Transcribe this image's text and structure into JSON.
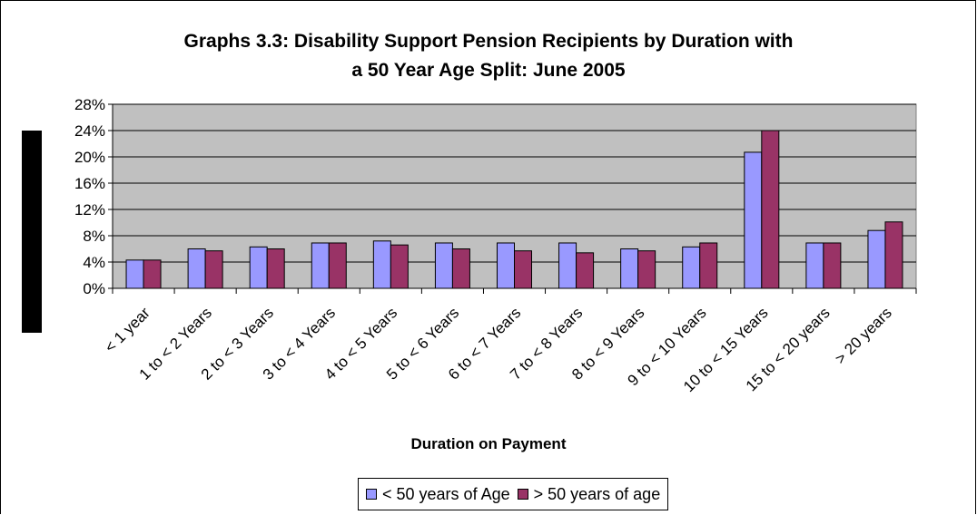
{
  "chart_data": {
    "type": "bar",
    "title_lines": [
      "Graphs 3.3: Disability Support Pension Recipients by Duration with",
      "a 50 Year Age Split:  June 2005"
    ],
    "xlabel": "Duration on Payment",
    "ylabel": "",
    "ylim": [
      0,
      28
    ],
    "yticks": [
      "0%",
      "4%",
      "8%",
      "12%",
      "16%",
      "20%",
      "24%",
      "28%"
    ],
    "grid": true,
    "legend_position": "bottom",
    "categories": [
      "< 1 year",
      "1 to < 2 Years",
      "2 to < 3 Years",
      "3 to < 4 Years",
      "4 to < 5 Years",
      "5 to < 6 Years",
      "6 to < 7 Years",
      "7 to < 8 Years",
      "8 to < 9 Years",
      "9 to < 10 Years",
      "10 to < 15 Years",
      "15 to < 20 years",
      "> 20 years"
    ],
    "series": [
      {
        "name": "< 50 years of Age",
        "color": "#9999ff",
        "values": [
          4.3,
          6.0,
          6.3,
          6.9,
          7.2,
          6.9,
          6.9,
          6.9,
          6.0,
          6.3,
          20.7,
          6.9,
          8.8
        ]
      },
      {
        "name": "> 50 years of age",
        "color": "#993366",
        "values": [
          4.3,
          5.7,
          6.0,
          6.9,
          6.6,
          6.0,
          5.7,
          5.4,
          5.7,
          6.9,
          24.0,
          6.9,
          10.1
        ]
      }
    ],
    "colors": {
      "plot_background": "#c0c0c0",
      "gridline": "#000000",
      "axis": "#000000"
    }
  }
}
